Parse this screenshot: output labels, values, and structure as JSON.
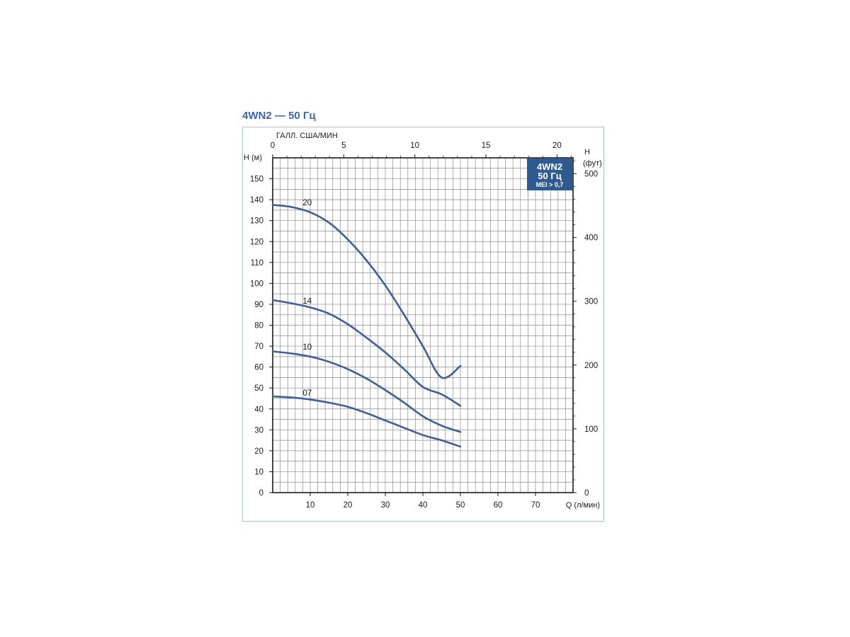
{
  "title": "4WN2 — 50 Гц",
  "badge": {
    "line1": "4WN2",
    "line2": "50 Гц",
    "line3": "MEI > 0,7"
  },
  "colors": {
    "curve": "#3e5f95",
    "badge_bg": "#2f5a8f",
    "title": "#3b66a8",
    "grid": "#8a8a8a",
    "frame": "#a9c3cc"
  },
  "chart_data": {
    "type": "line",
    "title": "4WN2 — 50 Гц",
    "xlabel": "Q (л/мин)",
    "ylabel": "H (м)",
    "x2label": "ГАЛЛ. США/МИН",
    "y2label": "H (фут)",
    "xlim": [
      0,
      80
    ],
    "ylim": [
      0,
      160
    ],
    "x2lim": [
      0,
      21.13
    ],
    "y2lim": [
      0,
      524.9
    ],
    "x_ticks": [
      10,
      20,
      30,
      40,
      50,
      60,
      70
    ],
    "y_ticks": [
      0,
      10,
      20,
      30,
      40,
      50,
      60,
      70,
      80,
      90,
      100,
      110,
      120,
      130,
      140,
      150
    ],
    "x2_ticks": [
      0,
      5,
      10,
      15,
      20
    ],
    "y2_ticks": [
      0,
      100,
      200,
      300,
      400,
      500
    ],
    "grid": true,
    "series": [
      {
        "name": "20",
        "label_at": [
          8,
          137
        ],
        "x": [
          0,
          5,
          10,
          15,
          20,
          25,
          30,
          35,
          40,
          45,
          50
        ],
        "y": [
          137.5,
          136.5,
          134,
          129,
          121,
          111,
          99,
          85,
          70,
          55,
          60.5
        ]
      },
      {
        "name": "14",
        "label_at": [
          8,
          90
        ],
        "x": [
          0,
          5,
          10,
          15,
          20,
          25,
          30,
          35,
          40,
          45,
          50
        ],
        "y": [
          92,
          90.5,
          88.5,
          85.5,
          80.5,
          74,
          67,
          59,
          50.5,
          47,
          41.5
        ]
      },
      {
        "name": "10",
        "label_at": [
          8,
          68
        ],
        "x": [
          0,
          5,
          10,
          15,
          20,
          25,
          30,
          35,
          40,
          45,
          50
        ],
        "y": [
          67.5,
          66.5,
          65,
          62.5,
          59,
          54.5,
          49,
          43,
          36.5,
          32,
          29
        ]
      },
      {
        "name": "07",
        "label_at": [
          8,
          46
        ],
        "x": [
          0,
          5,
          10,
          15,
          20,
          25,
          30,
          35,
          40,
          45,
          50
        ],
        "y": [
          46,
          45.5,
          44.5,
          43,
          41,
          38,
          34.5,
          31,
          27.5,
          25,
          22
        ]
      }
    ]
  }
}
